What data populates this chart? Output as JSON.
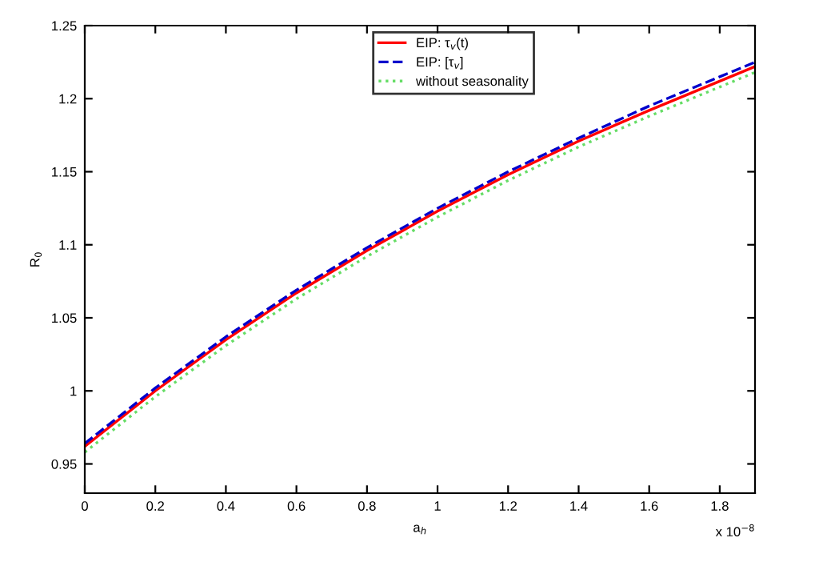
{
  "chart_data": {
    "type": "line",
    "xlabel": "a$_{h}$",
    "ylabel": "R$_{0}$",
    "annotations": [
      "x 10$^{−8}$"
    ],
    "x": [
      0,
      0.2,
      0.4,
      0.6,
      0.8,
      1.0,
      1.2,
      1.4,
      1.6,
      1.8,
      1.9
    ],
    "series": [
      {
        "name": "EIP: τ$_{v}$(t)",
        "color": "#ff0000",
        "line_style": "solid",
        "values": [
          0.962,
          1.0,
          1.035,
          1.067,
          1.096,
          1.123,
          1.148,
          1.171,
          1.192,
          1.212,
          1.222
        ]
      },
      {
        "name": "EIP: [τ$_{v}$]",
        "color": "#0000cc",
        "line_style": "dashed",
        "values": [
          0.964,
          1.002,
          1.037,
          1.069,
          1.098,
          1.125,
          1.15,
          1.173,
          1.195,
          1.215,
          1.225
        ]
      },
      {
        "name": "without seasonality",
        "color": "#66dd66",
        "line_style": "dotted",
        "values": [
          0.958,
          0.996,
          1.031,
          1.063,
          1.092,
          1.119,
          1.144,
          1.167,
          1.188,
          1.208,
          1.218
        ]
      }
    ],
    "xlim": [
      0,
      1.9
    ],
    "ylim": [
      0.93,
      1.25
    ],
    "xticks": [
      0,
      0.2,
      0.4,
      0.6,
      0.8,
      1,
      1.2,
      1.4,
      1.6,
      1.8
    ],
    "yticks": [
      0.95,
      1,
      1.05,
      1.1,
      1.15,
      1.2,
      1.25
    ],
    "grid": false,
    "legend": "top right",
    "marker": "none"
  }
}
